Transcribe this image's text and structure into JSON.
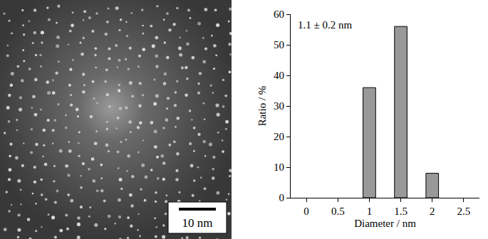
{
  "image": {
    "type": "micrograph",
    "scale_bar": "10 nm"
  },
  "chart_data": {
    "type": "bar",
    "annotation": "1.1 ± 0.2 nm",
    "x_label": "Diameter / nm",
    "y_label": "Ratio / %",
    "x": [
      1,
      1.5,
      2
    ],
    "values": [
      36,
      56,
      8
    ],
    "color": "#999999",
    "xlim": [
      -0.25,
      2.75
    ],
    "xticks": [
      0,
      0.5,
      1,
      1.5,
      2,
      2.5
    ],
    "ylim": [
      0,
      60
    ],
    "yticks": [
      0,
      10,
      20,
      30,
      40,
      50,
      60
    ],
    "grid": false
  }
}
